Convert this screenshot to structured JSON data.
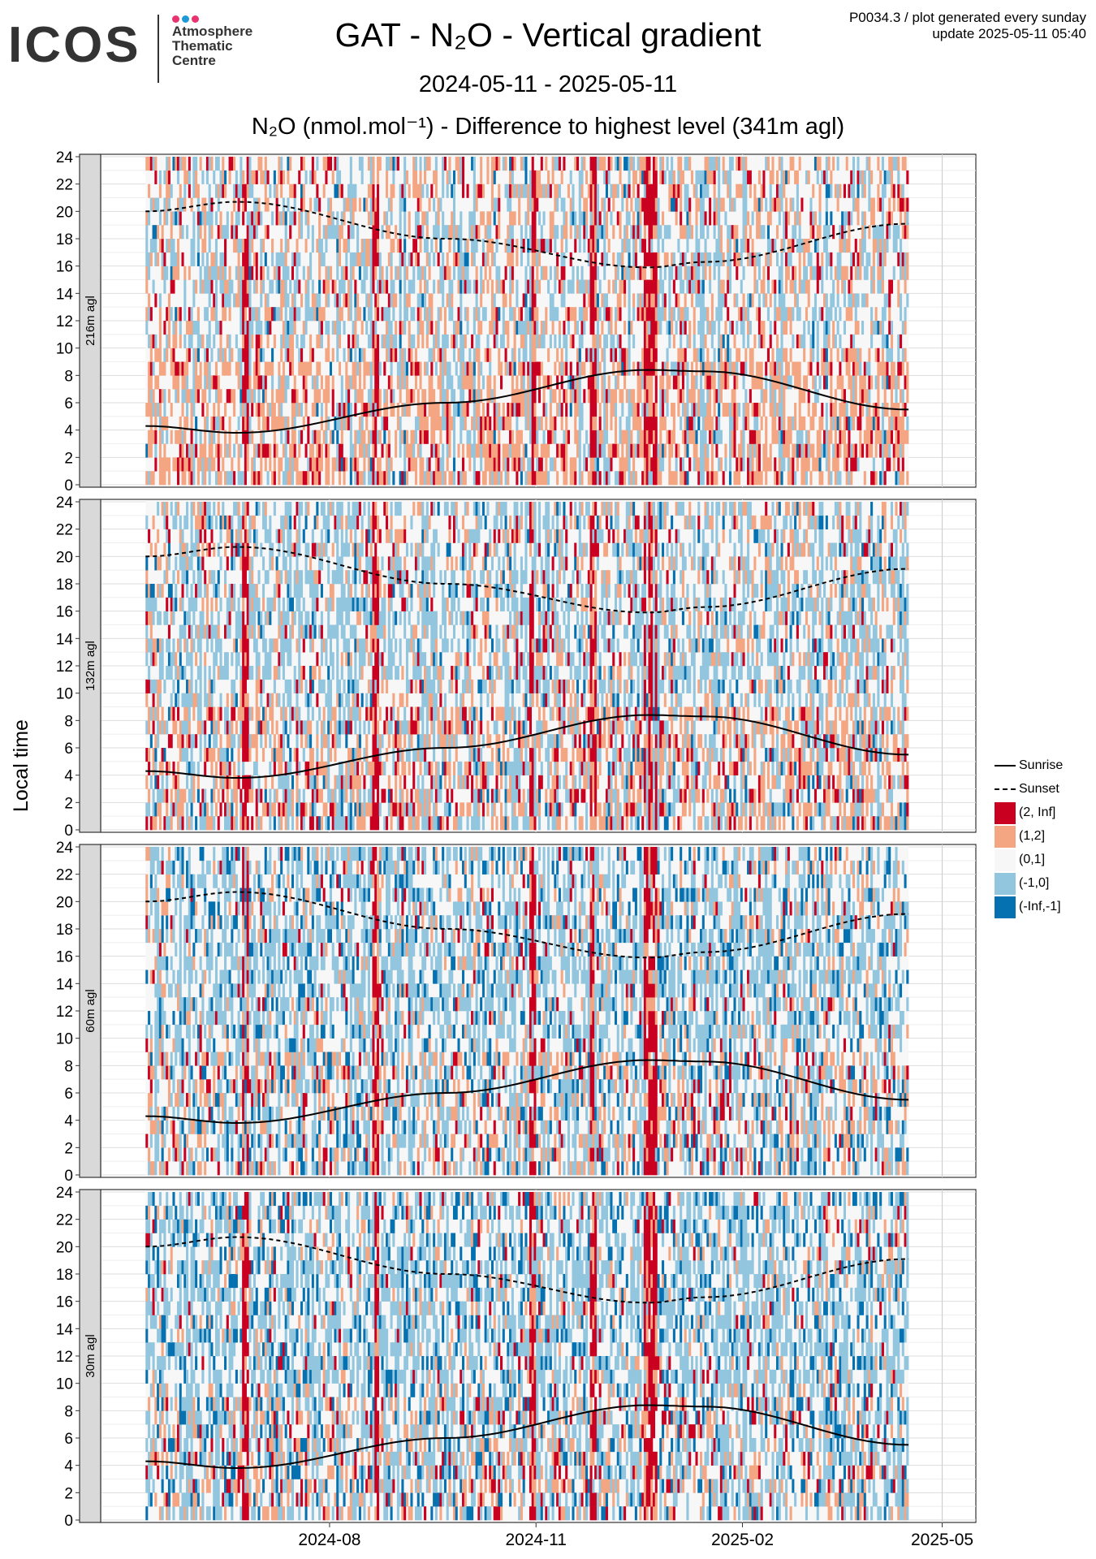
{
  "header": {
    "logo_word": "ICOS",
    "logo_sub": "Atmosphere\nThematic\nCentre",
    "logo_dot_colors": [
      "#e8336e",
      "#1f9ad6",
      "#e8336e"
    ],
    "title": "GAT - N₂O - Vertical gradient",
    "subtitle": "2024-05-11 - 2025-05-11",
    "plot_title": "N₂O (nmol.mol⁻¹) - Difference to highest level (341m agl)",
    "note": "P0034.3 / plot generated every sunday\nupdate  2025-05-11 05:40"
  },
  "chart_data": {
    "type": "heatmap",
    "ylabel": "Local time",
    "x_range": [
      "2024-05-11",
      "2025-05-11"
    ],
    "x_ticks": [
      "2024-08",
      "2024-11",
      "2025-02",
      "2025-05"
    ],
    "y_range": [
      0,
      24
    ],
    "y_ticks": [
      0,
      2,
      4,
      6,
      8,
      10,
      12,
      14,
      16,
      18,
      20,
      22,
      24
    ],
    "data_end": "2025-04-16",
    "panels": [
      {
        "label": "216m agl",
        "weights": [
          0.06,
          0.22,
          0.56,
          0.14,
          0.02
        ]
      },
      {
        "label": "132m agl",
        "weights": [
          0.05,
          0.16,
          0.52,
          0.22,
          0.05
        ]
      },
      {
        "label": "60m agl",
        "weights": [
          0.03,
          0.1,
          0.52,
          0.22,
          0.13
        ]
      },
      {
        "label": "30m agl",
        "weights": [
          0.03,
          0.09,
          0.5,
          0.24,
          0.14
        ]
      }
    ],
    "bins": [
      {
        "label": "(2, Inf]",
        "color": "#ca0020"
      },
      {
        "label": "(1,2]",
        "color": "#f4a582"
      },
      {
        "label": "(0,1]",
        "color": "#f7f7f7"
      },
      {
        "label": "(-1,0]",
        "color": "#92c5de"
      },
      {
        "label": "(-Inf,-1]",
        "color": "#0571b0"
      }
    ],
    "sunrise": {
      "label": "Sunrise",
      "points": [
        [
          "2024-05-11",
          4.3
        ],
        [
          "2024-06-21",
          3.8
        ],
        [
          "2024-09-22",
          6.0
        ],
        [
          "2024-12-21",
          8.4
        ],
        [
          "2025-01-15",
          8.3
        ],
        [
          "2025-04-16",
          5.5
        ]
      ]
    },
    "sunset": {
      "label": "Sunset",
      "points": [
        [
          "2024-05-11",
          20.0
        ],
        [
          "2024-06-21",
          20.7
        ],
        [
          "2024-09-22",
          18.0
        ],
        [
          "2024-12-21",
          15.9
        ],
        [
          "2025-01-15",
          16.3
        ],
        [
          "2025-04-16",
          19.1
        ]
      ]
    }
  }
}
